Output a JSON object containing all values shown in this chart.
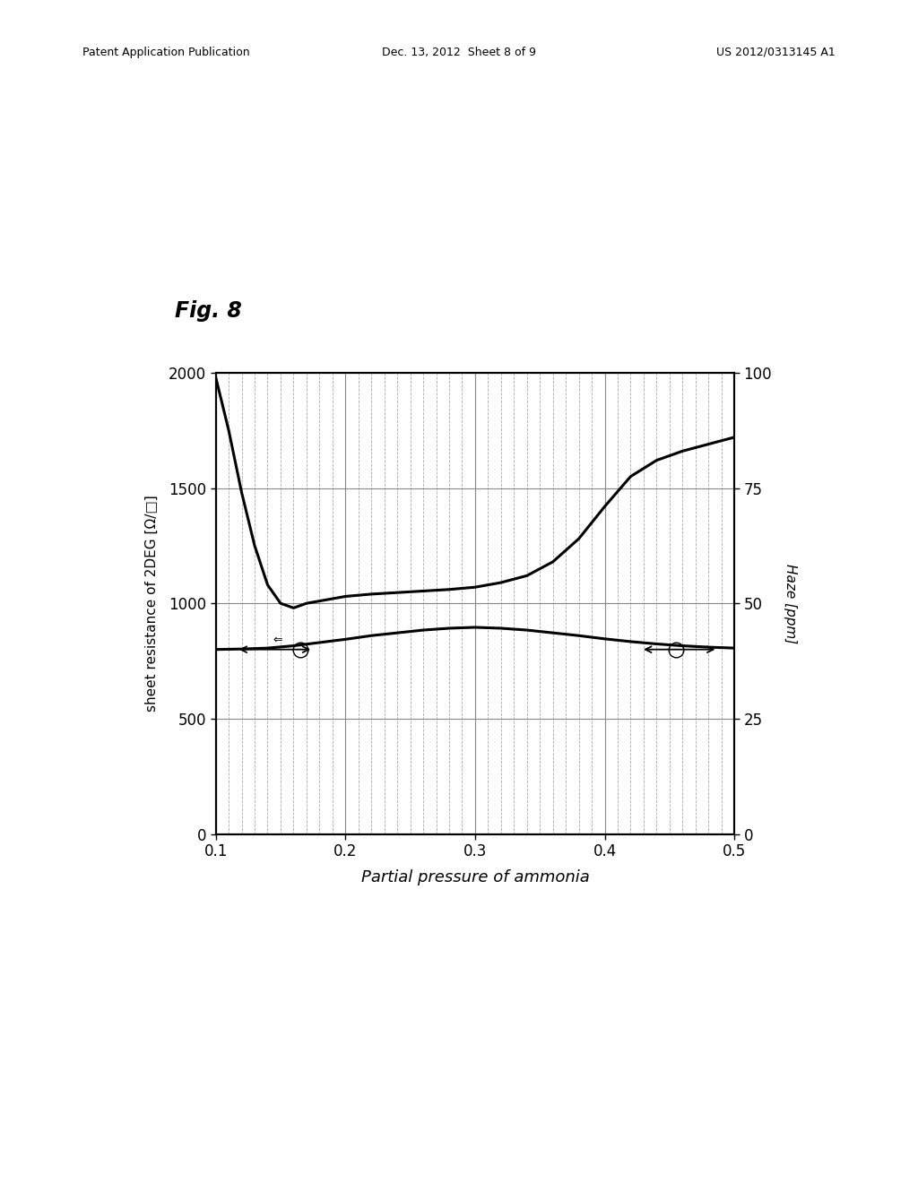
{
  "fig_label": "Fig. 8",
  "xlabel": "Partial pressure of ammonia",
  "ylabel_left": "sheet resistance of 2DEG [Ω/□]",
  "ylabel_right": "Haze [ppm]",
  "xlim": [
    0.1,
    0.5
  ],
  "ylim_left": [
    0,
    2000
  ],
  "ylim_right": [
    0,
    100
  ],
  "xticks": [
    0.1,
    0.2,
    0.3,
    0.4,
    0.5
  ],
  "yticks_left": [
    0,
    500,
    1000,
    1500,
    2000
  ],
  "yticks_right": [
    0,
    25,
    50,
    75,
    100
  ],
  "background_color": "#ffffff",
  "line_color": "#000000",
  "grid_major_color": "#888888",
  "sheet_resistance_x": [
    0.1,
    0.11,
    0.12,
    0.13,
    0.14,
    0.15,
    0.16,
    0.17,
    0.18,
    0.19,
    0.2,
    0.22,
    0.25,
    0.28,
    0.3,
    0.32,
    0.34,
    0.36,
    0.38,
    0.4,
    0.42,
    0.44,
    0.46,
    0.48,
    0.5
  ],
  "sheet_resistance_y": [
    1980,
    1750,
    1480,
    1250,
    1080,
    1000,
    980,
    1000,
    1010,
    1020,
    1030,
    1040,
    1050,
    1060,
    1070,
    1090,
    1120,
    1180,
    1280,
    1420,
    1550,
    1620,
    1660,
    1690,
    1720
  ],
  "haze_x": [
    0.1,
    0.12,
    0.14,
    0.16,
    0.18,
    0.2,
    0.22,
    0.24,
    0.26,
    0.28,
    0.3,
    0.32,
    0.34,
    0.36,
    0.38,
    0.4,
    0.42,
    0.44,
    0.46,
    0.48,
    0.5
  ],
  "haze_y": [
    40,
    40.1,
    40.3,
    40.8,
    41.5,
    42.2,
    43.0,
    43.6,
    44.2,
    44.6,
    44.8,
    44.6,
    44.2,
    43.6,
    43.0,
    42.3,
    41.7,
    41.2,
    40.8,
    40.5,
    40.3
  ],
  "header_left": "Patent Application Publication",
  "header_mid": "Dec. 13, 2012  Sheet 8 of 9",
  "header_right": "US 2012/0313145 A1"
}
